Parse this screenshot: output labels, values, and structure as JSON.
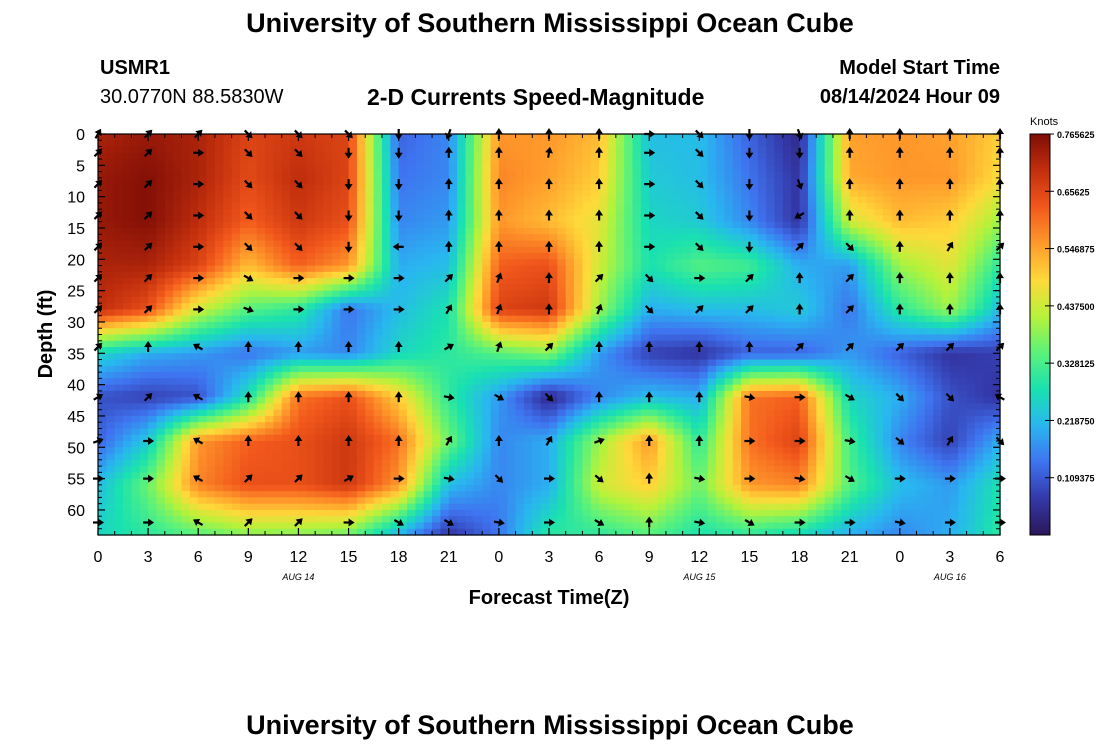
{
  "page": {
    "title_top": "University of Southern Mississippi Ocean Cube",
    "title_bottom": "University of Southern Mississippi Ocean Cube",
    "station_id": "USMR1",
    "station_coords": "30.0770N  88.5830W",
    "plot_name": "2-D Currents Speed-Magnitude",
    "model_start_label": "Model Start Time",
    "model_start_value": "08/14/2024 Hour 09"
  },
  "chart_data": {
    "type": "heatmap",
    "title": "2-D Currents Speed-Magnitude",
    "xlabel": "Forecast Time(Z)",
    "ylabel": "Depth (ft)",
    "x_ticks": [
      "0",
      "3",
      "6",
      "9",
      "12",
      "15",
      "18",
      "21",
      "0",
      "3",
      "6",
      "9",
      "12",
      "15",
      "18",
      "21",
      "0",
      "3",
      "6"
    ],
    "x_hours": [
      0,
      3,
      6,
      9,
      12,
      15,
      18,
      21,
      24,
      27,
      30,
      33,
      36,
      39,
      42,
      45,
      48,
      51,
      54
    ],
    "date_labels": [
      {
        "label": "AUG 14",
        "hour": 12
      },
      {
        "label": "AUG 15",
        "hour": 36
      },
      {
        "label": "AUG 16",
        "hour": 51
      }
    ],
    "xlim": [
      0,
      54
    ],
    "y_ticks": [
      "0",
      "5",
      "10",
      "15",
      "20",
      "25",
      "30",
      "35",
      "40",
      "45",
      "50",
      "55",
      "60"
    ],
    "y_values": [
      0,
      5,
      10,
      15,
      20,
      25,
      30,
      35,
      40,
      45,
      50,
      55,
      60
    ],
    "ylim": [
      0,
      64
    ],
    "grid_hours": [
      0,
      3,
      6,
      9,
      12,
      15,
      18,
      21,
      24,
      27,
      30,
      33,
      36,
      39,
      42,
      45,
      48,
      51,
      54
    ],
    "grid_depths": [
      0,
      7,
      14,
      21,
      28,
      35,
      42,
      49,
      56,
      64
    ],
    "speed_knots": [
      [
        0.72,
        0.74,
        0.72,
        0.66,
        0.68,
        0.66,
        0.12,
        0.16,
        0.56,
        0.56,
        0.52,
        0.22,
        0.22,
        0.12,
        0.04,
        0.55,
        0.56,
        0.55,
        0.5
      ],
      [
        0.74,
        0.76,
        0.72,
        0.65,
        0.7,
        0.66,
        0.14,
        0.16,
        0.58,
        0.55,
        0.5,
        0.24,
        0.22,
        0.14,
        0.06,
        0.54,
        0.56,
        0.56,
        0.48
      ],
      [
        0.74,
        0.76,
        0.7,
        0.62,
        0.68,
        0.64,
        0.16,
        0.18,
        0.56,
        0.52,
        0.46,
        0.26,
        0.24,
        0.16,
        0.06,
        0.44,
        0.52,
        0.5,
        0.4
      ],
      [
        0.72,
        0.72,
        0.66,
        0.52,
        0.62,
        0.56,
        0.2,
        0.22,
        0.62,
        0.64,
        0.44,
        0.28,
        0.34,
        0.32,
        0.2,
        0.18,
        0.4,
        0.46,
        0.3
      ],
      [
        0.7,
        0.64,
        0.44,
        0.34,
        0.3,
        0.14,
        0.22,
        0.28,
        0.66,
        0.68,
        0.4,
        0.2,
        0.22,
        0.22,
        0.24,
        0.14,
        0.3,
        0.4,
        0.22
      ],
      [
        0.26,
        0.2,
        0.18,
        0.14,
        0.18,
        0.16,
        0.26,
        0.3,
        0.34,
        0.38,
        0.18,
        0.08,
        0.06,
        0.12,
        0.12,
        0.18,
        0.12,
        0.06,
        0.08
      ],
      [
        0.1,
        0.08,
        0.1,
        0.28,
        0.6,
        0.64,
        0.5,
        0.3,
        0.18,
        0.04,
        0.16,
        0.22,
        0.2,
        0.6,
        0.62,
        0.26,
        0.2,
        0.1,
        0.06
      ],
      [
        0.12,
        0.24,
        0.56,
        0.62,
        0.64,
        0.68,
        0.6,
        0.36,
        0.16,
        0.2,
        0.4,
        0.56,
        0.3,
        0.6,
        0.66,
        0.32,
        0.16,
        0.08,
        0.2
      ],
      [
        0.22,
        0.36,
        0.58,
        0.64,
        0.64,
        0.68,
        0.56,
        0.22,
        0.16,
        0.2,
        0.44,
        0.5,
        0.36,
        0.56,
        0.58,
        0.34,
        0.22,
        0.18,
        0.28
      ],
      [
        0.26,
        0.3,
        0.34,
        0.38,
        0.38,
        0.36,
        0.2,
        0.06,
        0.14,
        0.3,
        0.3,
        0.34,
        0.28,
        0.3,
        0.26,
        0.2,
        0.16,
        0.2,
        0.3
      ]
    ],
    "arrow_hours": [
      0,
      3,
      6,
      9,
      12,
      15,
      18,
      21,
      24,
      27,
      30,
      33,
      36,
      39,
      42,
      45,
      48,
      51,
      54
    ],
    "arrow_depths": [
      0,
      3,
      8,
      13,
      18,
      23,
      28,
      34,
      42,
      49,
      55,
      62
    ],
    "arrow_dirs_deg": [
      [
        30,
        45,
        45,
        135,
        135,
        135,
        180,
        200,
        0,
        0,
        0,
        90,
        135,
        180,
        160,
        0,
        0,
        0,
        0
      ],
      [
        45,
        45,
        90,
        135,
        135,
        180,
        180,
        0,
        0,
        10,
        0,
        90,
        135,
        180,
        180,
        0,
        0,
        0,
        0
      ],
      [
        45,
        45,
        90,
        135,
        135,
        180,
        180,
        0,
        0,
        0,
        0,
        90,
        135,
        180,
        160,
        0,
        0,
        0,
        0
      ],
      [
        45,
        45,
        90,
        135,
        135,
        180,
        180,
        0,
        0,
        0,
        0,
        90,
        135,
        180,
        240,
        0,
        0,
        0,
        0
      ],
      [
        45,
        45,
        90,
        135,
        135,
        180,
        270,
        0,
        0,
        0,
        0,
        90,
        135,
        180,
        45,
        135,
        0,
        30,
        45
      ],
      [
        45,
        45,
        90,
        120,
        90,
        90,
        90,
        45,
        20,
        0,
        45,
        135,
        90,
        45,
        0,
        45,
        0,
        0,
        0
      ],
      [
        45,
        45,
        90,
        110,
        90,
        90,
        90,
        30,
        20,
        0,
        20,
        135,
        45,
        45,
        0,
        45,
        0,
        0,
        0
      ],
      [
        45,
        0,
        300,
        0,
        0,
        0,
        0,
        60,
        20,
        45,
        0,
        0,
        0,
        0,
        45,
        45,
        45,
        45,
        45
      ],
      [
        60,
        45,
        300,
        0,
        0,
        0,
        0,
        100,
        120,
        135,
        0,
        0,
        0,
        100,
        90,
        120,
        135,
        135,
        300
      ],
      [
        70,
        90,
        300,
        0,
        0,
        0,
        0,
        30,
        0,
        30,
        70,
        0,
        0,
        90,
        90,
        100,
        130,
        30,
        135
      ],
      [
        90,
        90,
        300,
        45,
        45,
        60,
        90,
        100,
        135,
        90,
        130,
        0,
        100,
        90,
        100,
        120,
        90,
        90,
        90
      ],
      [
        90,
        90,
        300,
        45,
        45,
        90,
        120,
        120,
        100,
        90,
        120,
        0,
        100,
        120,
        90,
        90,
        100,
        90,
        90
      ]
    ],
    "colorbar": {
      "title": "Knots",
      "ticks": [
        "0.765625",
        "0.65625",
        "0.546875",
        "0.437500",
        "0.328125",
        "0.218750",
        "0.109375"
      ],
      "tick_values": [
        0.765625,
        0.65625,
        0.546875,
        0.4375,
        0.328125,
        0.21875,
        0.109375
      ],
      "range": [
        0,
        0.765625
      ],
      "stops": [
        "#2b1758",
        "#3438a8",
        "#3f73f0",
        "#29b6f0",
        "#19e1b0",
        "#5cf27a",
        "#b6f23a",
        "#ffd93a",
        "#ff9a2b",
        "#f2581c",
        "#c22f0d",
        "#7f0d06"
      ]
    }
  }
}
